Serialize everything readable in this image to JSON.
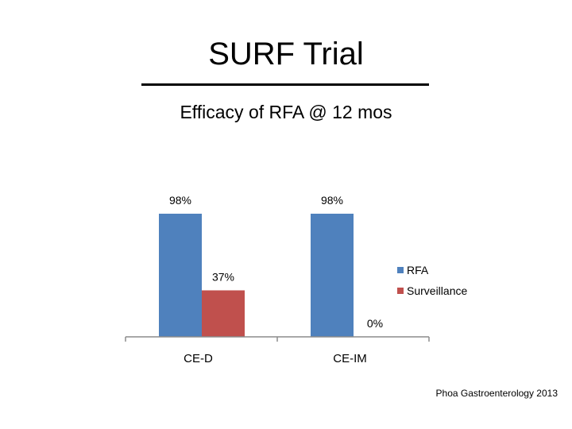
{
  "header": {
    "title": "SURF Trial",
    "subtitle": "Efficacy of RFA @ 12 mos"
  },
  "citation": "Phoa Gastroenterology 2013",
  "chart_data": {
    "type": "bar",
    "categories": [
      "CE-D",
      "CE-IM"
    ],
    "series": [
      {
        "name": "RFA",
        "values": [
          98,
          98
        ],
        "labels": [
          "98%",
          "98%"
        ],
        "color": "#4f81bd"
      },
      {
        "name": "Surveillance",
        "values": [
          37,
          0
        ],
        "labels": [
          "37%",
          "0%"
        ],
        "color": "#c0504d"
      }
    ],
    "ylim": [
      0,
      100
    ],
    "grid": false,
    "legend_position": "right"
  }
}
